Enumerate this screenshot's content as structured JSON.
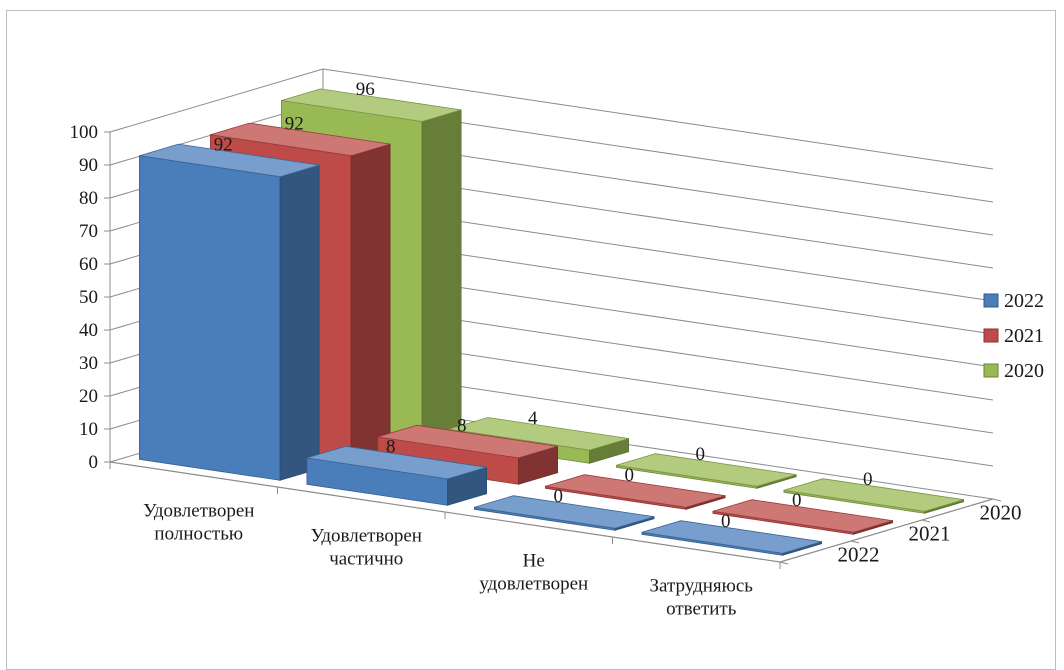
{
  "chart_data": {
    "type": "bar",
    "subtype": "3d-column",
    "categories": [
      "Удовлетворен полностью",
      "Удовлетворен частично",
      "Не удовлетворен",
      "Затрудняюсь ответить"
    ],
    "category_lines": [
      [
        "Удовлетворен",
        "полностью"
      ],
      [
        "Удовлетворен",
        "частично"
      ],
      [
        "Не",
        "удовлетворен"
      ],
      [
        "Затрудняюсь",
        "ответить"
      ]
    ],
    "series": [
      {
        "name": "2022",
        "values": [
          92,
          8,
          0,
          0
        ],
        "color": "#4a7ebb"
      },
      {
        "name": "2021",
        "values": [
          92,
          8,
          0,
          0
        ],
        "color": "#be4b48"
      },
      {
        "name": "2020",
        "values": [
          96,
          4,
          0,
          0
        ],
        "color": "#98b954"
      }
    ],
    "depth_labels": [
      "2020",
      "2021",
      "2022"
    ],
    "y_ticks": [
      "0",
      "10",
      "20",
      "30",
      "40",
      "50",
      "60",
      "70",
      "80",
      "90",
      "100"
    ],
    "ylim": [
      0,
      100
    ],
    "grid": true,
    "legend_position": "right"
  }
}
